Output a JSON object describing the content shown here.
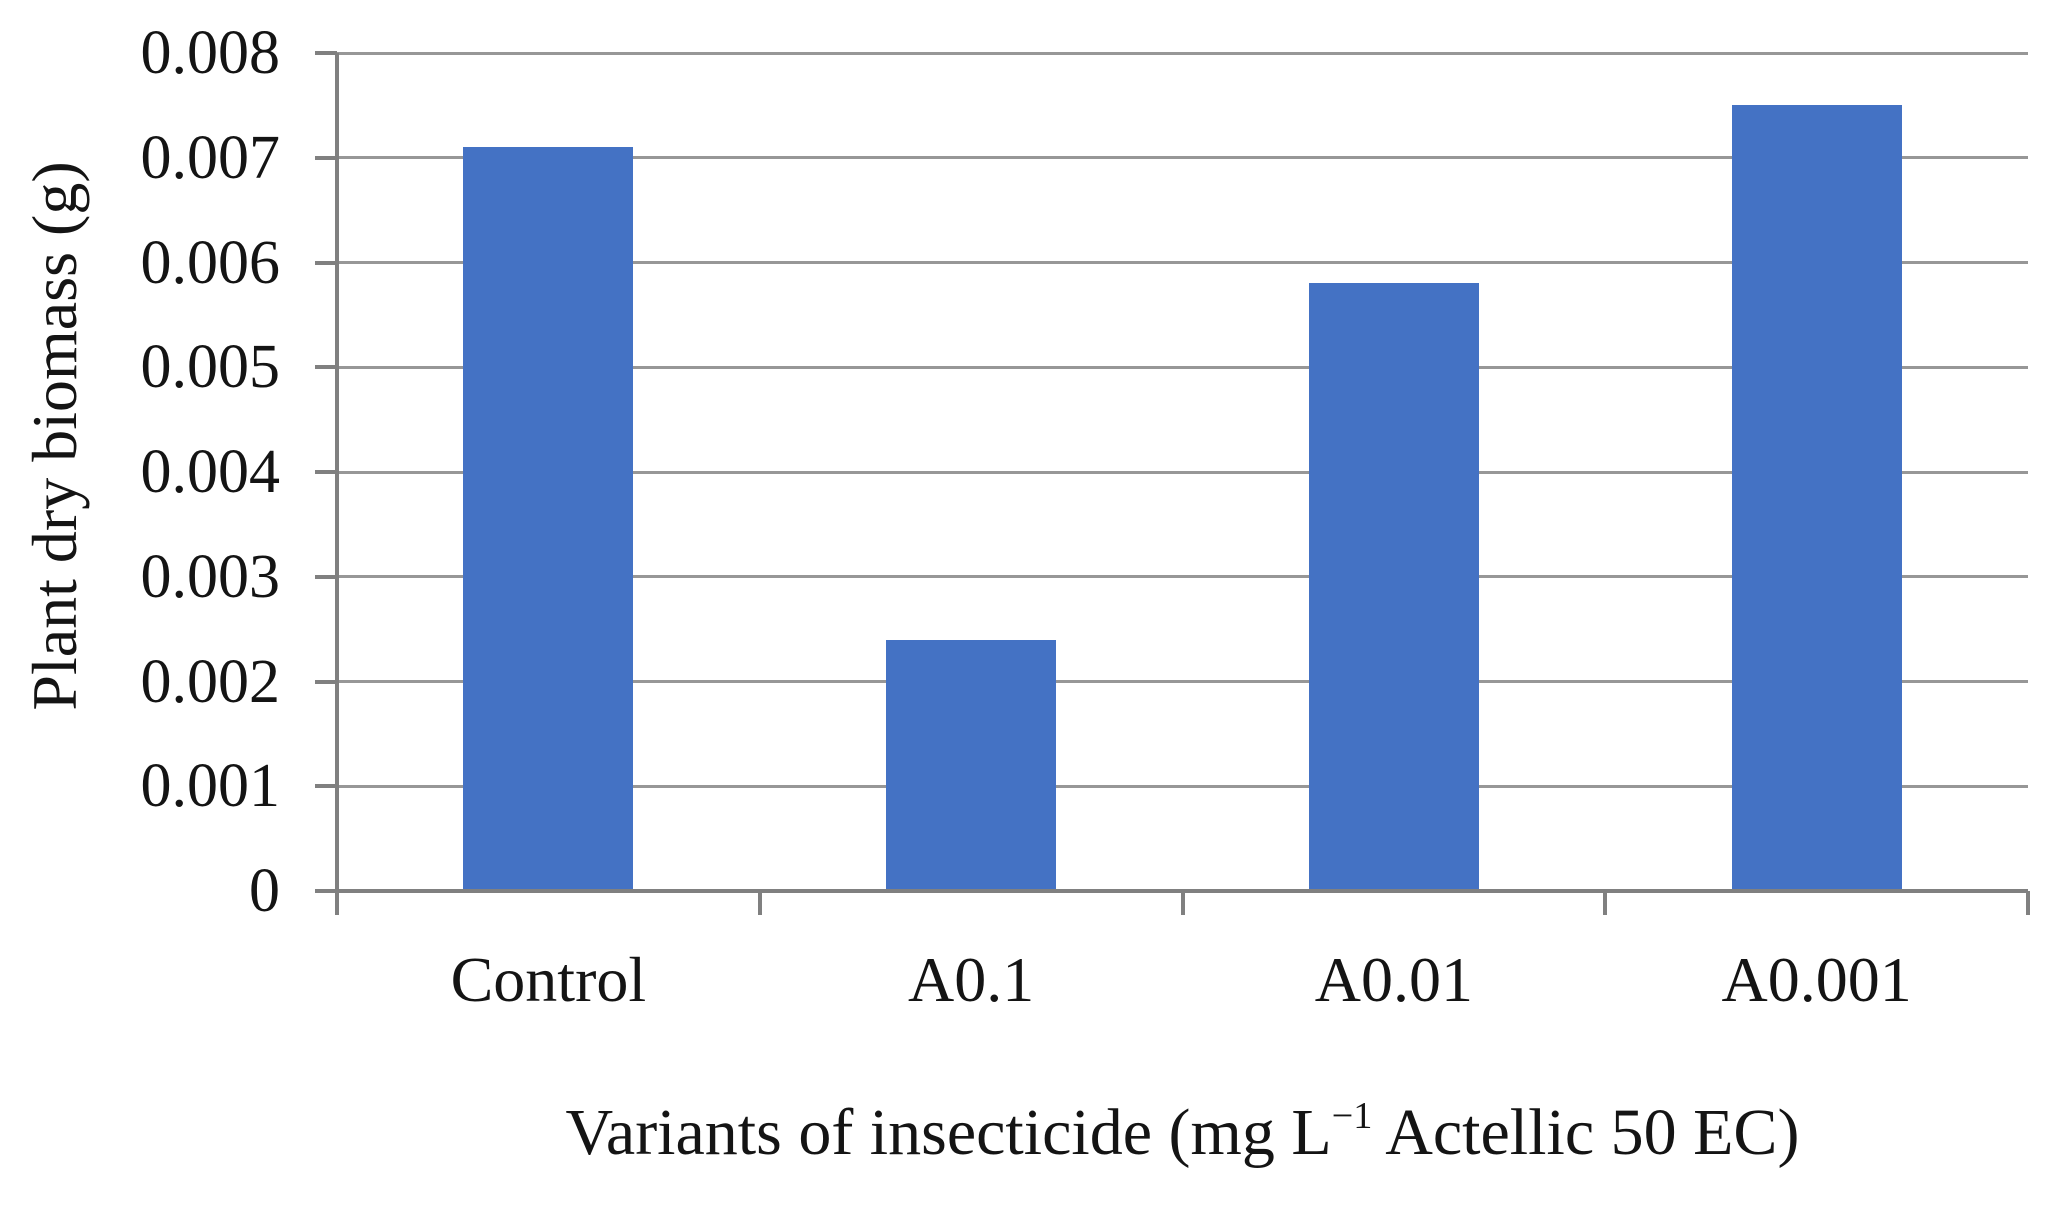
{
  "figure": {
    "y_axis_title": "Plant dry biomass (g)",
    "x_axis_title_prefix": "Variants of insecticide (mg L",
    "x_axis_title_sup": "−1",
    "x_axis_title_suffix": " Actellic 50 EC)"
  },
  "chart_data": {
    "type": "bar",
    "title": "",
    "categories": [
      "Control",
      "A0.1",
      "A0.01",
      "A0.001"
    ],
    "values": [
      0.0071,
      0.0024,
      0.0058,
      0.0075
    ],
    "xlabel": "Variants of insecticide (mg L−1 Actellic 50 EC)",
    "ylabel": "Plant dry biomass (g)",
    "ylim": [
      0,
      0.008
    ],
    "ytick_step": 0.001,
    "ytick_labels": [
      "0",
      "0.001",
      "0.002",
      "0.003",
      "0.004",
      "0.005",
      "0.006",
      "0.007",
      "0.008"
    ],
    "grid": true,
    "legend": false,
    "bar_color": "#4472C4",
    "gridline_color": "#979797",
    "axis_color": "#808080",
    "text_color": "#141414"
  }
}
